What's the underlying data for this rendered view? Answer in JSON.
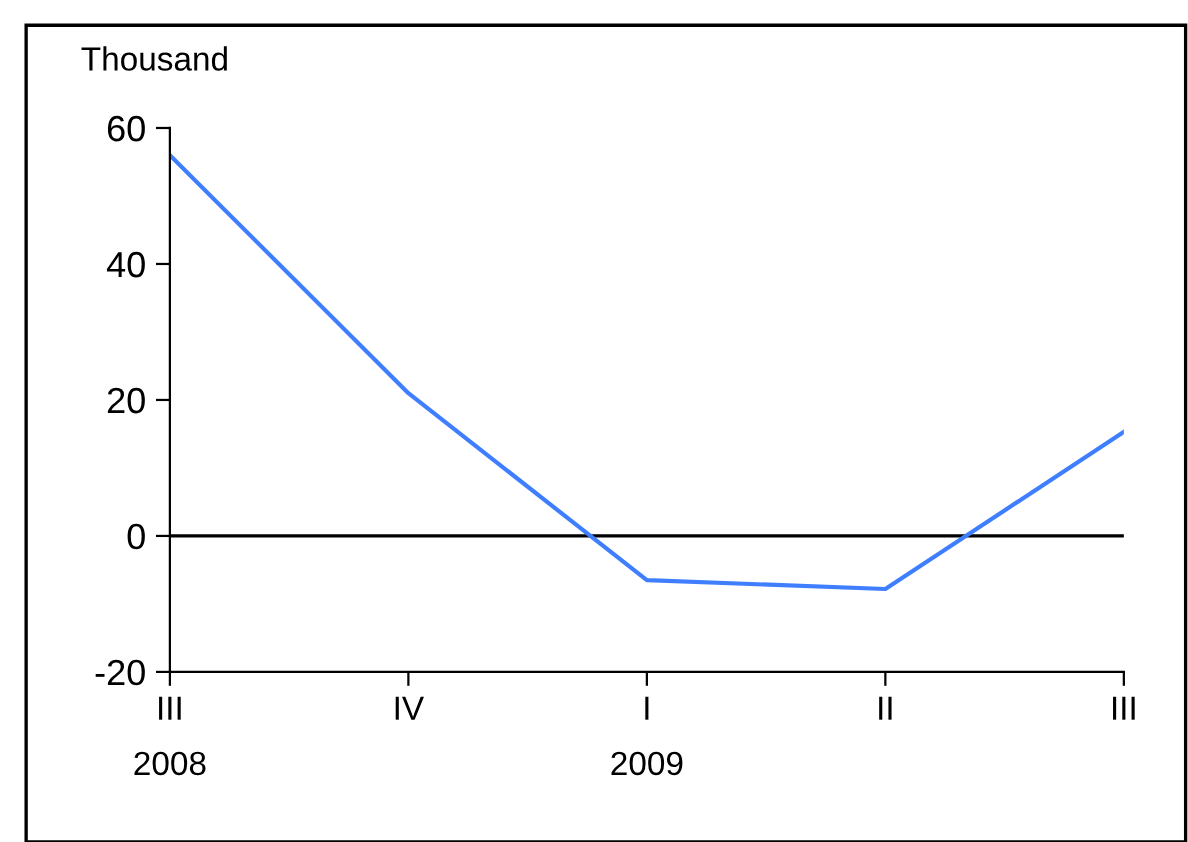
{
  "chart_data": {
    "type": "line",
    "ylabel": "Thousand",
    "categories": [
      "III\n2008",
      "IV",
      "I\n2009",
      "II",
      "III"
    ],
    "series": [
      {
        "color": "#3f7fff",
        "values": [
          56,
          21,
          -6.5,
          -7.8,
          15.3
        ]
      }
    ],
    "ylim": [
      -20,
      60
    ],
    "yticks": [
      -20,
      0,
      20,
      40,
      60
    ],
    "ref_lines": [
      {
        "axis": "y",
        "value": 0,
        "color": "#000000"
      }
    ],
    "grid": false,
    "legend": false
  }
}
